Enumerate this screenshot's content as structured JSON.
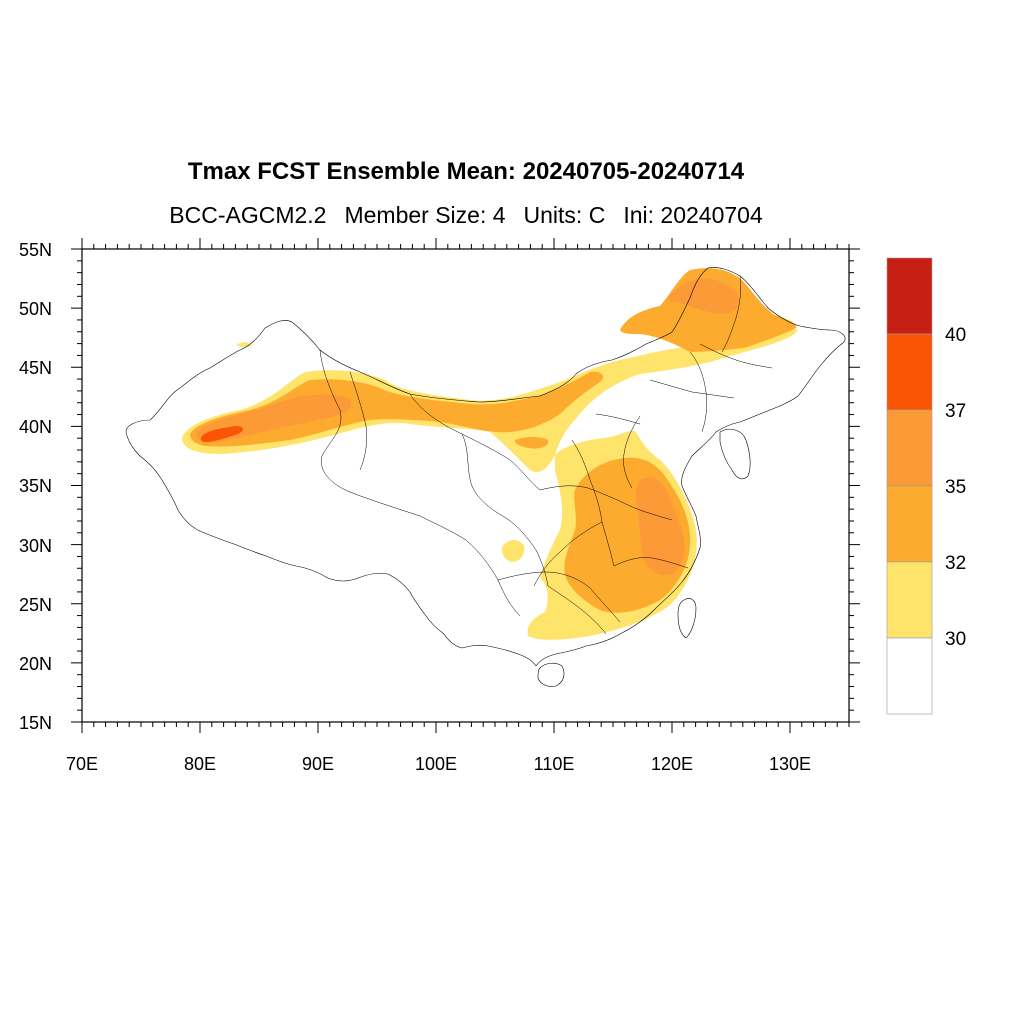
{
  "title": "Tmax FCST Ensemble Mean: 20240705-20240714",
  "subtitle": {
    "model": "BCC-AGCM2.2",
    "members": "Member Size: 4",
    "units": "Units: C",
    "ini": "Ini: 20240704"
  },
  "map": {
    "lon_labels": [
      "70E",
      "80E",
      "90E",
      "100E",
      "110E",
      "120E",
      "130E"
    ],
    "lat_labels": [
      "55N",
      "50N",
      "45N",
      "40N",
      "35N",
      "30N",
      "25N",
      "20N",
      "15N"
    ],
    "lon_range": [
      70,
      135
    ],
    "lat_range": [
      15,
      55
    ]
  },
  "colorbar": {
    "labels": [
      "40",
      "37",
      "35",
      "32",
      "30"
    ],
    "colors": [
      "#c71f14",
      "#fa5505",
      "#fd9a38",
      "#fdab2f",
      "#fee46a",
      "#ffffff"
    ]
  },
  "fill_colors": {
    "c30": "#fee46a",
    "c32": "#fdab2f",
    "c35": "#fd9a38",
    "c37": "#fa5505"
  }
}
